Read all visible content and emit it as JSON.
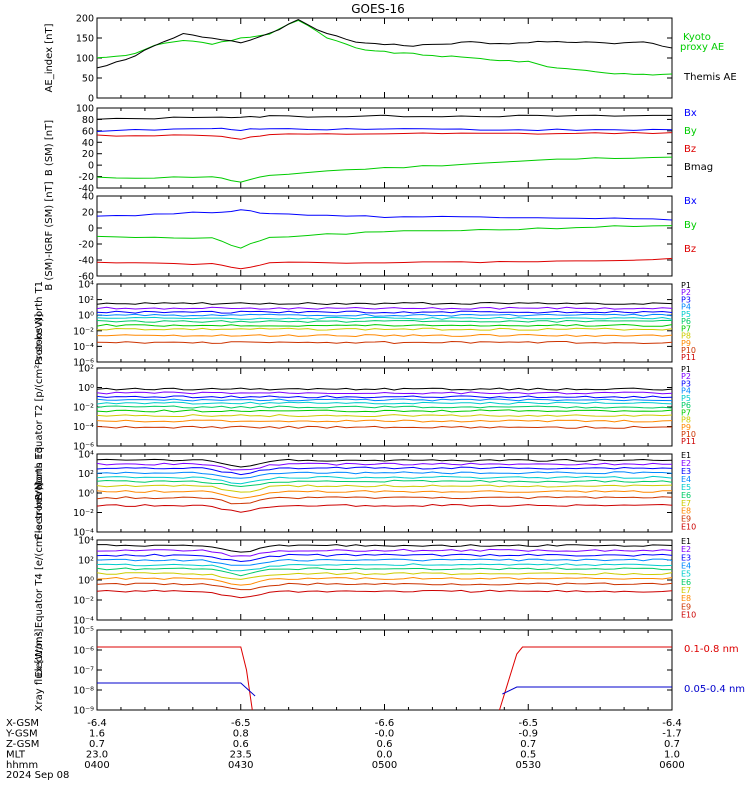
{
  "title": "GOES-16",
  "date_label": "2024 Sep 08",
  "time_axis": {
    "ticks": [
      "0400",
      "0430",
      "0500",
      "0530",
      "0600"
    ],
    "rows": [
      {
        "label": "X-GSM",
        "values": [
          "-6.4",
          "-6.5",
          "-6.6",
          "-6.5",
          "-6.4"
        ]
      },
      {
        "label": "Y-GSM",
        "values": [
          "1.6",
          "0.8",
          "-0.0",
          "-0.9",
          "-1.7"
        ]
      },
      {
        "label": "Z-GSM",
        "values": [
          "0.7",
          "0.6",
          "0.6",
          "0.7",
          "0.7"
        ]
      },
      {
        "label": "MLT",
        "values": [
          "23.0",
          "23.5",
          "0.0",
          "0.5",
          "1.0"
        ]
      },
      {
        "label": "hhmm",
        "values": [
          "0400",
          "0430",
          "0500",
          "0530",
          "0600"
        ]
      }
    ]
  },
  "chart_data": [
    {
      "type": "line",
      "ylabel": "AE_index [nT]",
      "ylim": [
        0,
        200
      ],
      "yticks": [
        "0",
        "50",
        "100",
        "150",
        "200"
      ],
      "x_hours": [
        4.0,
        4.1,
        4.2,
        4.3,
        4.4,
        4.5,
        4.6,
        4.7,
        4.8,
        4.9,
        5.0,
        5.1,
        5.2,
        5.3,
        5.4,
        5.5,
        5.6,
        5.7,
        5.8,
        5.9,
        6.0
      ],
      "series": [
        {
          "name": "Kyoto proxy AE",
          "color": "#00cc00",
          "values": [
            100,
            105,
            130,
            145,
            135,
            150,
            160,
            195,
            150,
            125,
            115,
            110,
            105,
            100,
            95,
            90,
            75,
            70,
            60,
            58,
            60
          ]
        },
        {
          "name": "Themis AE",
          "color": "#000000",
          "values": [
            75,
            95,
            130,
            160,
            150,
            140,
            160,
            195,
            160,
            140,
            135,
            130,
            135,
            140,
            135,
            140,
            140,
            140,
            135,
            140,
            125
          ]
        }
      ]
    },
    {
      "type": "line",
      "ylabel": "B (SM) [nT]",
      "ylim": [
        -40,
        100
      ],
      "yticks": [
        "-40",
        "-20",
        "0",
        "20",
        "40",
        "60",
        "80",
        "100"
      ],
      "x_hours": [
        4.0,
        4.2,
        4.4,
        4.5,
        4.6,
        4.8,
        5.0,
        5.2,
        5.4,
        5.6,
        5.8,
        6.0
      ],
      "series": [
        {
          "name": "Bx",
          "color": "#0000ff",
          "values": [
            60,
            62,
            64,
            62,
            64,
            63,
            64,
            63,
            62,
            62,
            61,
            62
          ]
        },
        {
          "name": "By",
          "color": "#00cc00",
          "values": [
            -22,
            -22,
            -20,
            -30,
            -18,
            -10,
            -5,
            0,
            5,
            10,
            13,
            14
          ]
        },
        {
          "name": "Bz",
          "color": "#dd0000",
          "values": [
            52,
            52,
            52,
            46,
            53,
            54,
            55,
            55,
            55,
            55,
            56,
            57
          ]
        },
        {
          "name": "Bmag",
          "color": "#000000",
          "values": [
            80,
            82,
            85,
            83,
            86,
            85,
            86,
            86,
            86,
            86,
            86,
            87
          ]
        }
      ]
    },
    {
      "type": "line",
      "ylabel": "B (SM)-IGRF (SM) [nT]",
      "ylim": [
        -60,
        40
      ],
      "yticks": [
        "-60",
        "-40",
        "-20",
        "0",
        "20",
        "40"
      ],
      "x_hours": [
        4.0,
        4.2,
        4.4,
        4.5,
        4.6,
        4.8,
        5.0,
        5.2,
        5.4,
        5.6,
        5.8,
        6.0
      ],
      "series": [
        {
          "name": "Bx",
          "color": "#0000ff",
          "values": [
            15,
            17,
            20,
            22,
            18,
            16,
            14,
            14,
            14,
            13,
            12,
            10
          ]
        },
        {
          "name": "By",
          "color": "#00cc00",
          "values": [
            -10,
            -12,
            -13,
            -25,
            -12,
            -8,
            -5,
            -3,
            -2,
            0,
            2,
            3
          ]
        },
        {
          "name": "Bz",
          "color": "#dd0000",
          "values": [
            -42,
            -44,
            -45,
            -50,
            -44,
            -43,
            -43,
            -43,
            -42,
            -42,
            -40,
            -38
          ]
        }
      ]
    },
    {
      "type": "line",
      "ylabel": "Protons North T1",
      "log": true,
      "yticks": [
        "10⁻⁶",
        "10⁻⁴",
        "10⁻²",
        "10⁰",
        "10²",
        "10⁴"
      ],
      "labels": [
        "P1",
        "P2",
        "P3",
        "P4",
        "P5",
        "P6",
        "P7",
        "P8",
        "P9",
        "P10",
        "P11"
      ],
      "colors": [
        "#000000",
        "#7f00ff",
        "#0000ff",
        "#0088ff",
        "#00cccc",
        "#00cc66",
        "#00cc00",
        "#cccc00",
        "#ff8800",
        "#cc3300",
        "#cc0000"
      ],
      "levels": [
        1.5,
        0.9,
        0.4,
        0.0,
        -0.4,
        -0.8,
        -1.3,
        -1.8,
        -2.6,
        -3.5,
        null
      ]
    },
    {
      "type": "line",
      "ylabel": "Protons Equator T2 [p/(cm²-s-sr-keV)]",
      "log": true,
      "yticks": [
        "10⁻⁶",
        "10⁻⁴",
        "10⁻²",
        "10⁰",
        "10²"
      ],
      "labels": [
        "P1",
        "P2",
        "P3",
        "P4",
        "P5",
        "P6",
        "P7",
        "P8",
        "P9",
        "P10",
        "P11"
      ],
      "colors": [
        "#000000",
        "#7f00ff",
        "#0000ff",
        "#0088ff",
        "#00cccc",
        "#00cc66",
        "#00cc00",
        "#cccc00",
        "#ff8800",
        "#cc3300",
        "#cc0000"
      ],
      "levels": [
        1.3,
        0.8,
        0.3,
        -0.1,
        -0.5,
        -1.0,
        -1.5,
        -2.1,
        -2.8,
        -3.6,
        null
      ]
    },
    {
      "type": "line",
      "ylabel": "Electrons North T3",
      "log": true,
      "yticks": [
        "10⁻⁴",
        "10⁻²",
        "10⁰",
        "10²",
        "10⁴"
      ],
      "labels": [
        "E1",
        "E2",
        "E3",
        "E4",
        "E5",
        "E6",
        "E7",
        "E8",
        "E9",
        "E10"
      ],
      "colors": [
        "#000000",
        "#7f00ff",
        "#0000ff",
        "#0088ff",
        "#00cccc",
        "#00cc66",
        "#cccc00",
        "#ff8800",
        "#cc3300",
        "#cc0000"
      ],
      "levels": [
        3.2,
        2.7,
        2.2,
        1.6,
        1.0,
        0.5,
        -0.1,
        -0.8,
        -1.6,
        -2.6
      ]
    },
    {
      "type": "line",
      "ylabel": "Electrons Equator T4 [e/(cm²-s-sr-keV)]",
      "log": true,
      "yticks": [
        "10⁻⁴",
        "10⁻²",
        "10⁰",
        "10²",
        "10⁴"
      ],
      "labels": [
        "E1",
        "E2",
        "E3",
        "E4",
        "E5",
        "E6",
        "E7",
        "E8",
        "E9",
        "E10"
      ],
      "colors": [
        "#000000",
        "#7f00ff",
        "#0000ff",
        "#0088ff",
        "#00cccc",
        "#00cc66",
        "#cccc00",
        "#ff8800",
        "#cc3300",
        "#cc0000"
      ],
      "levels": [
        3.3,
        2.7,
        2.1,
        1.5,
        0.9,
        0.4,
        -0.2,
        -0.8,
        -1.5,
        -2.4
      ]
    },
    {
      "type": "line",
      "ylabel": "Xray flux [W/m²]",
      "log": true,
      "yticks": [
        "10⁻⁹",
        "10⁻⁸",
        "10⁻⁷",
        "10⁻⁶",
        "10⁻⁵"
      ],
      "series": [
        {
          "name": "0.1-0.8 nm",
          "color": "#dd0000"
        },
        {
          "name": "0.05-0.4 nm",
          "color": "#0000cc"
        }
      ]
    }
  ]
}
